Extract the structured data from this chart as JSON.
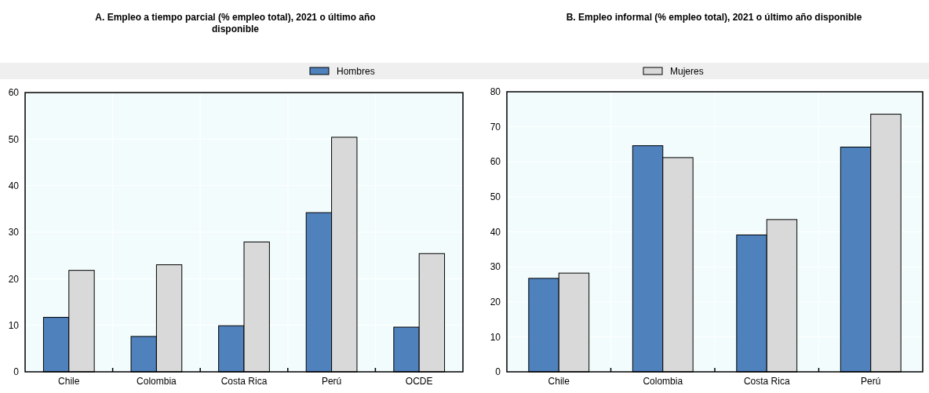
{
  "chart_data": [
    {
      "type": "bar",
      "title": "A. Empleo a tiempo parcial (% empleo total), 2021 o último año disponible",
      "categories": [
        "Chile",
        "Colombia",
        "Costa Rica",
        "Perú",
        "OCDE"
      ],
      "series": [
        {
          "name": "Hombres",
          "color": "#4f81bd",
          "values": [
            11.7,
            7.6,
            9.9,
            34.2,
            9.6
          ]
        },
        {
          "name": "Mujeres",
          "color": "#d9d9d9",
          "values": [
            21.8,
            23.0,
            27.9,
            50.4,
            25.4
          ]
        }
      ],
      "ylim": [
        0,
        60
      ],
      "yticks": [
        0,
        10,
        20,
        30,
        40,
        50,
        60
      ],
      "grid": true,
      "legend": "top"
    },
    {
      "type": "bar",
      "title": "B. Empleo informal (% empleo total), 2021 o último año disponible",
      "categories": [
        "Chile",
        "Colombia",
        "Costa Rica",
        "Perú"
      ],
      "series": [
        {
          "color": "#4f81bd",
          "values": [
            26.7,
            64.6,
            39.1,
            64.2
          ]
        },
        {
          "color": "#d9d9d9",
          "values": [
            28.2,
            61.2,
            43.5,
            73.6
          ]
        }
      ],
      "ylim": [
        0,
        80
      ],
      "yticks": [
        0,
        10,
        20,
        30,
        40,
        50,
        60,
        70,
        80
      ],
      "grid": true
    }
  ]
}
